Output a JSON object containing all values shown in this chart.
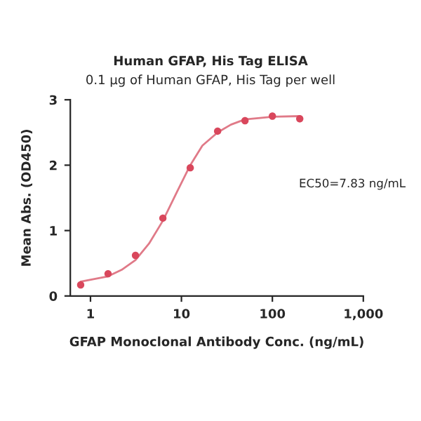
{
  "chart_data": {
    "type": "scatter",
    "title": "Human GFAP, His Tag ELISA",
    "subtitle": "0.1 μg of Human GFAP, His Tag per well",
    "xlabel": "GFAP Monoclonal Antibody Conc. (ng/mL)",
    "ylabel": "Mean Abs. (OD450)",
    "annotations": [
      "EC50=7.83 ng/mL"
    ],
    "log": "x",
    "grid": false,
    "series": [
      {
        "marker": "circle",
        "color": "#d9475c",
        "x": [
          0.78,
          1.56,
          3.125,
          6.25,
          12.5,
          25,
          50,
          100,
          200
        ],
        "values": [
          0.17,
          0.34,
          0.62,
          1.19,
          1.96,
          2.52,
          2.68,
          2.75,
          2.71
        ]
      },
      {
        "type": "line",
        "marker": "none",
        "color": "#e07a88",
        "x": [
          0.78,
          1.56,
          2.2,
          3.125,
          4.4,
          6.25,
          9,
          12.5,
          17,
          25,
          35,
          50,
          70,
          100,
          200
        ],
        "values": [
          0.22,
          0.3,
          0.4,
          0.55,
          0.8,
          1.15,
          1.6,
          2.0,
          2.3,
          2.5,
          2.62,
          2.7,
          2.72,
          2.74,
          2.75
        ]
      }
    ],
    "xlim": [
      0.6,
      1000
    ],
    "xticks": [
      1,
      10,
      100,
      {
        "value": 1000,
        "label": "1,000"
      }
    ],
    "ylim": [
      0,
      3
    ],
    "yticks": [
      0,
      1,
      2,
      3
    ]
  }
}
